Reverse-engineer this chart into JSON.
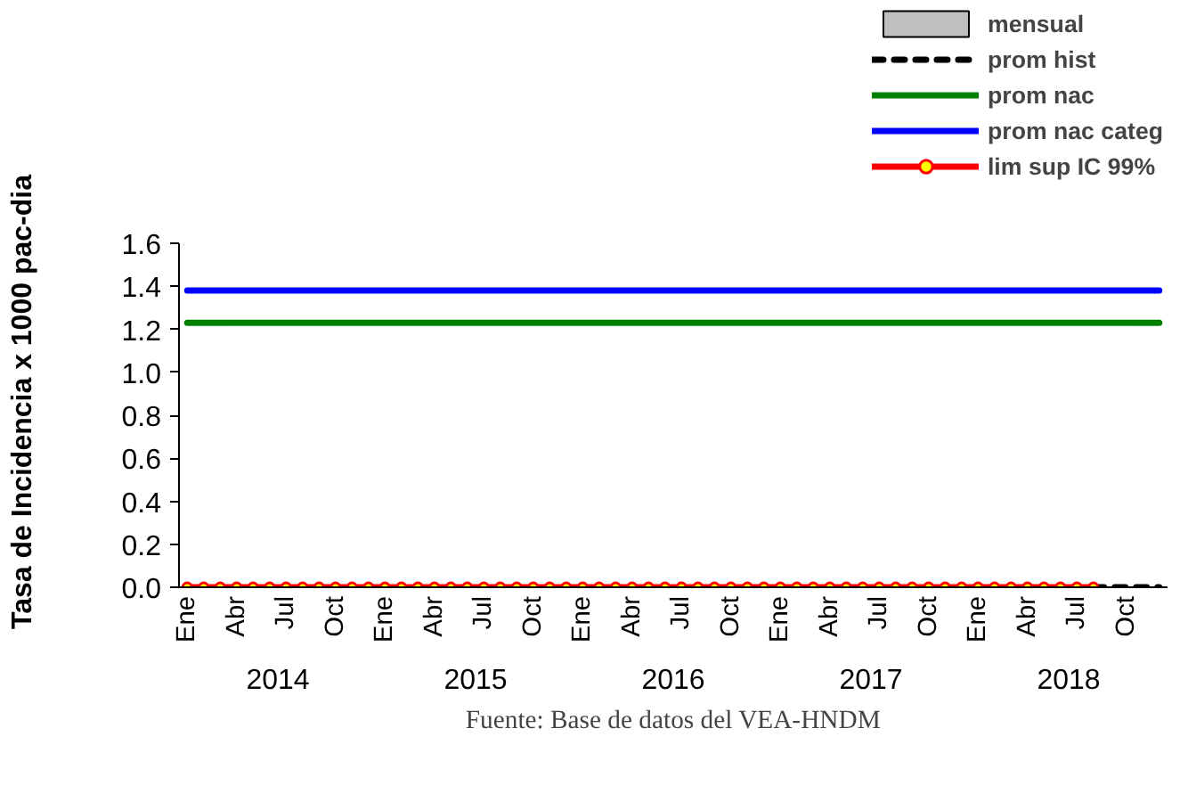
{
  "chart_data": {
    "type": "line",
    "ylabel": "Tasa de Incidencia x 1000 pac-dia",
    "categories": [
      "Ene",
      null,
      null,
      "Abr",
      null,
      null,
      "Jul",
      null,
      null,
      "Oct",
      null,
      null,
      "Ene",
      null,
      null,
      "Abr",
      null,
      null,
      "Jul",
      null,
      null,
      "Oct",
      null,
      null,
      "Ene",
      null,
      null,
      "Abr",
      null,
      null,
      "Jul",
      null,
      null,
      "Oct",
      null,
      null,
      "Ene",
      null,
      null,
      "Abr",
      null,
      null,
      "Jul",
      null,
      null,
      "Oct",
      null,
      null,
      "Ene",
      null,
      null,
      "Abr",
      null,
      null,
      "Jul",
      null,
      null,
      "Oct",
      null,
      null
    ],
    "annotations": [
      "2014",
      "2015",
      "2016",
      "2017",
      "2018",
      "Fuente: Base de datos del VEA-HNDM"
    ],
    "ylim": [
      0,
      1.6
    ],
    "yticks": [
      {
        "value": 0,
        "label": "0.0"
      },
      {
        "value": 0.2,
        "label": "0.2"
      },
      {
        "value": 0.4,
        "label": "0.4"
      },
      {
        "value": 0.6,
        "label": "0.6"
      },
      {
        "value": 0.8,
        "label": "0.8"
      },
      {
        "value": 1.0,
        "label": "1.0"
      },
      {
        "value": 1.2,
        "label": "1.2"
      },
      {
        "value": 1.4,
        "label": "1.4"
      },
      {
        "value": 1.6,
        "label": "1.6"
      }
    ],
    "grid": false,
    "legend": "top right",
    "series": [
      {
        "name": "mensual",
        "type": "bar",
        "color": "#bfbfbf",
        "values": [
          0,
          0,
          0,
          0,
          0,
          0,
          0,
          0,
          0,
          0,
          0,
          0,
          0,
          0,
          0,
          0,
          0,
          0,
          0,
          0,
          0,
          0,
          0,
          0,
          0,
          0,
          0,
          0,
          0,
          0,
          0,
          0,
          0,
          0,
          0,
          0,
          0,
          0,
          0,
          0,
          0,
          0,
          0,
          0,
          0,
          0,
          0,
          0,
          0,
          0,
          0,
          0,
          0,
          0,
          0,
          0,
          0,
          0,
          0,
          0
        ]
      },
      {
        "name": "prom hist",
        "line_style": "dashed",
        "color": "#000000",
        "values": [
          null,
          null,
          null,
          null,
          null,
          null,
          null,
          null,
          null,
          null,
          null,
          null,
          null,
          null,
          null,
          null,
          null,
          null,
          null,
          null,
          null,
          null,
          null,
          null,
          null,
          null,
          null,
          null,
          null,
          null,
          null,
          null,
          null,
          null,
          null,
          null,
          null,
          null,
          null,
          null,
          null,
          null,
          null,
          null,
          null,
          null,
          null,
          null,
          null,
          null,
          null,
          null,
          null,
          null,
          null,
          0,
          0,
          0,
          0,
          0
        ]
      },
      {
        "name": "prom nac",
        "color": "#008000",
        "values": [
          1.23,
          1.23,
          1.23,
          1.23,
          1.23,
          1.23,
          1.23,
          1.23,
          1.23,
          1.23,
          1.23,
          1.23,
          1.23,
          1.23,
          1.23,
          1.23,
          1.23,
          1.23,
          1.23,
          1.23,
          1.23,
          1.23,
          1.23,
          1.23,
          1.23,
          1.23,
          1.23,
          1.23,
          1.23,
          1.23,
          1.23,
          1.23,
          1.23,
          1.23,
          1.23,
          1.23,
          1.23,
          1.23,
          1.23,
          1.23,
          1.23,
          1.23,
          1.23,
          1.23,
          1.23,
          1.23,
          1.23,
          1.23,
          1.23,
          1.23,
          1.23,
          1.23,
          1.23,
          1.23,
          1.23,
          1.23,
          1.23,
          1.23,
          1.23,
          1.23
        ]
      },
      {
        "name": "prom nac categ",
        "color": "#0000ff",
        "values": [
          1.38,
          1.38,
          1.38,
          1.38,
          1.38,
          1.38,
          1.38,
          1.38,
          1.38,
          1.38,
          1.38,
          1.38,
          1.38,
          1.38,
          1.38,
          1.38,
          1.38,
          1.38,
          1.38,
          1.38,
          1.38,
          1.38,
          1.38,
          1.38,
          1.38,
          1.38,
          1.38,
          1.38,
          1.38,
          1.38,
          1.38,
          1.38,
          1.38,
          1.38,
          1.38,
          1.38,
          1.38,
          1.38,
          1.38,
          1.38,
          1.38,
          1.38,
          1.38,
          1.38,
          1.38,
          1.38,
          1.38,
          1.38,
          1.38,
          1.38,
          1.38,
          1.38,
          1.38,
          1.38,
          1.38,
          1.38,
          1.38,
          1.38,
          1.38,
          1.38
        ]
      },
      {
        "name": "lim sup IC 99%",
        "marker": "circle",
        "color": "#ff0000",
        "values": [
          0,
          0,
          0,
          0,
          0,
          0,
          0,
          0,
          0,
          0,
          0,
          0,
          0,
          0,
          0,
          0,
          0,
          0,
          0,
          0,
          0,
          0,
          0,
          0,
          0,
          0,
          0,
          0,
          0,
          0,
          0,
          0,
          0,
          0,
          0,
          0,
          0,
          0,
          0,
          0,
          0,
          0,
          0,
          0,
          0,
          0,
          0,
          0,
          0,
          0,
          0,
          0,
          0,
          0,
          0,
          0,
          null,
          null,
          null,
          null
        ]
      }
    ]
  }
}
